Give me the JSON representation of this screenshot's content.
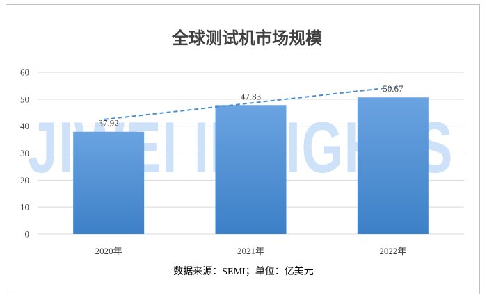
{
  "watermark": "JIWEI INSIGHTS",
  "colors": {
    "bar_top": "#6aa3e1",
    "bar_bottom": "#3d80c7",
    "trend": "#4a8ed1",
    "grid": "#d9d9d9",
    "watermark": "#b9d5f7"
  },
  "chart_data": {
    "type": "bar",
    "title": "全球测试机市场规模",
    "categories": [
      "2020年",
      "2021年",
      "2022年"
    ],
    "values": [
      37.92,
      47.83,
      50.67
    ],
    "value_labels": [
      "37.92",
      "47.83",
      "50.67"
    ],
    "ylim": [
      0,
      60
    ],
    "yticks": [
      "0",
      "10",
      "20",
      "30",
      "40",
      "50",
      "60"
    ],
    "grid": true,
    "trendline": "dashed linear",
    "source_note": "数据来源：SEMI；单位：亿美元"
  }
}
